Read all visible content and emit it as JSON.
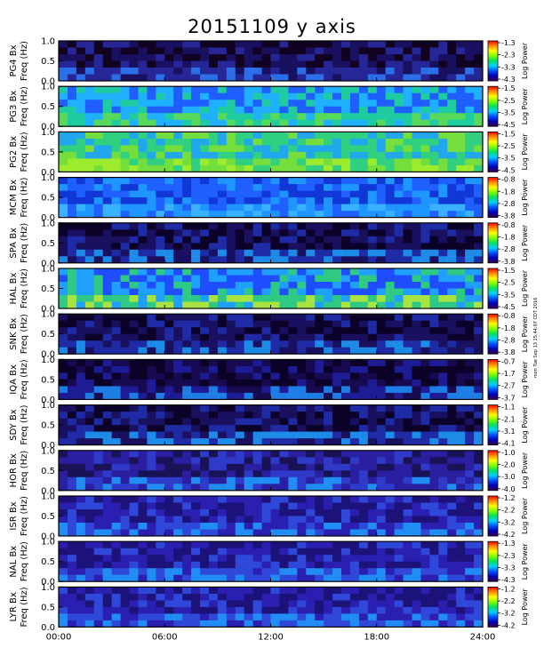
{
  "title": "20151109 y axis",
  "side_note": "mon Tue Sep 13 15:44:07 CDT 2016",
  "chart_data": {
    "type": "heatmap",
    "title": "20151109 y axis",
    "xlabel": "",
    "x_ticks": [
      "00:00",
      "06:00",
      "12:00",
      "18:00",
      "24:00"
    ],
    "x_range_hours": [
      0,
      24
    ],
    "y_range": [
      0,
      1.0
    ],
    "y_ticks": [
      "0.0",
      "0.5",
      "1.0"
    ],
    "colorbar_label": "Log Power",
    "panels": [
      {
        "ylabel": "PG4 Bx Freq (Hz)",
        "colorbar_ticks": [
          "-1.3",
          "-2.3",
          "-3.3",
          "-4.3"
        ]
      },
      {
        "ylabel": "PG3 Bx Freq (Hz)",
        "colorbar_ticks": [
          "-1.5",
          "-2.5",
          "-3.5",
          "-4.5"
        ]
      },
      {
        "ylabel": "PG2 Bx Freq (Hz)",
        "colorbar_ticks": [
          "-1.5",
          "-2.5",
          "-3.5",
          "-4.5"
        ]
      },
      {
        "ylabel": "MCM Bx Freq (Hz)",
        "colorbar_ticks": [
          "-0.8",
          "-1.8",
          "-2.8",
          "-3.8"
        ]
      },
      {
        "ylabel": "SPA Bx Freq (Hz)",
        "colorbar_ticks": [
          "-0.8",
          "-1.8",
          "-2.8",
          "-3.8"
        ]
      },
      {
        "ylabel": "HAL Bx Freq (Hz)",
        "colorbar_ticks": [
          "-1.5",
          "-2.5",
          "-3.5",
          "-4.5"
        ]
      },
      {
        "ylabel": "SNK Bx Freq (Hz)",
        "colorbar_ticks": [
          "-0.8",
          "-1.8",
          "-2.8",
          "-3.8"
        ]
      },
      {
        "ylabel": "IQA Bx Freq (Hz)",
        "colorbar_ticks": [
          "-0.7",
          "-1.7",
          "-2.7",
          "-3.7"
        ]
      },
      {
        "ylabel": "SDY Bx Freq (Hz)",
        "colorbar_ticks": [
          "-1.1",
          "-2.1",
          "-3.1",
          "-4.1"
        ]
      },
      {
        "ylabel": "HOR Bx Freq (Hz)",
        "colorbar_ticks": [
          "-1.0",
          "-2.0",
          "-3.0",
          "-4.0"
        ]
      },
      {
        "ylabel": "ISR Bx Freq (Hz)",
        "colorbar_ticks": [
          "-1.2",
          "-2.2",
          "-3.2",
          "-4.2"
        ]
      },
      {
        "ylabel": "NAL Bx Freq (Hz)",
        "colorbar_ticks": [
          "-1.3",
          "-2.3",
          "-3.3",
          "-4.3"
        ]
      },
      {
        "ylabel": "LYR Bx Freq (Hz)",
        "colorbar_ticks": [
          "-1.2",
          "-2.2",
          "-3.2",
          "-4.2"
        ]
      }
    ]
  },
  "colors": {
    "colormap": [
      "#ffffff",
      "#ff0000",
      "#ff8c00",
      "#ffff00",
      "#7fff00",
      "#00e060",
      "#00d0ff",
      "#0050ff",
      "#0000b4",
      "#3a0050",
      "#000000"
    ],
    "background": "#ffffff",
    "frame": "#000000"
  }
}
